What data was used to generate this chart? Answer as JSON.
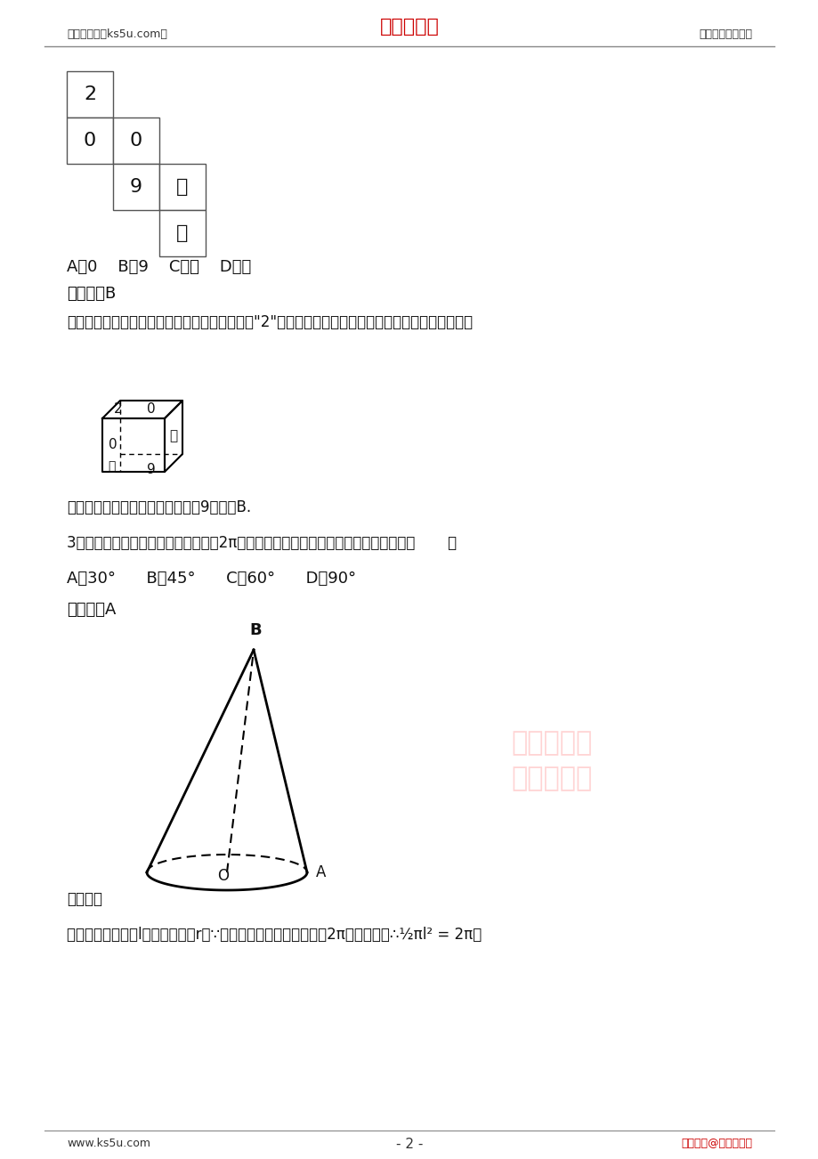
{
  "bg_color": "#ffffff",
  "header_left": "高考资源网（ks5u.com）",
  "header_center": "高考资源网",
  "header_right": "您身边的高考专家",
  "header_center_color": "#cc0000",
  "footer_left": "www.ks5u.com",
  "footer_center": "- 2 -",
  "footer_right": "版权所有@高考资源网",
  "footer_right_color": "#cc0000",
  "line_color": "#000000",
  "text_color": "#000000"
}
